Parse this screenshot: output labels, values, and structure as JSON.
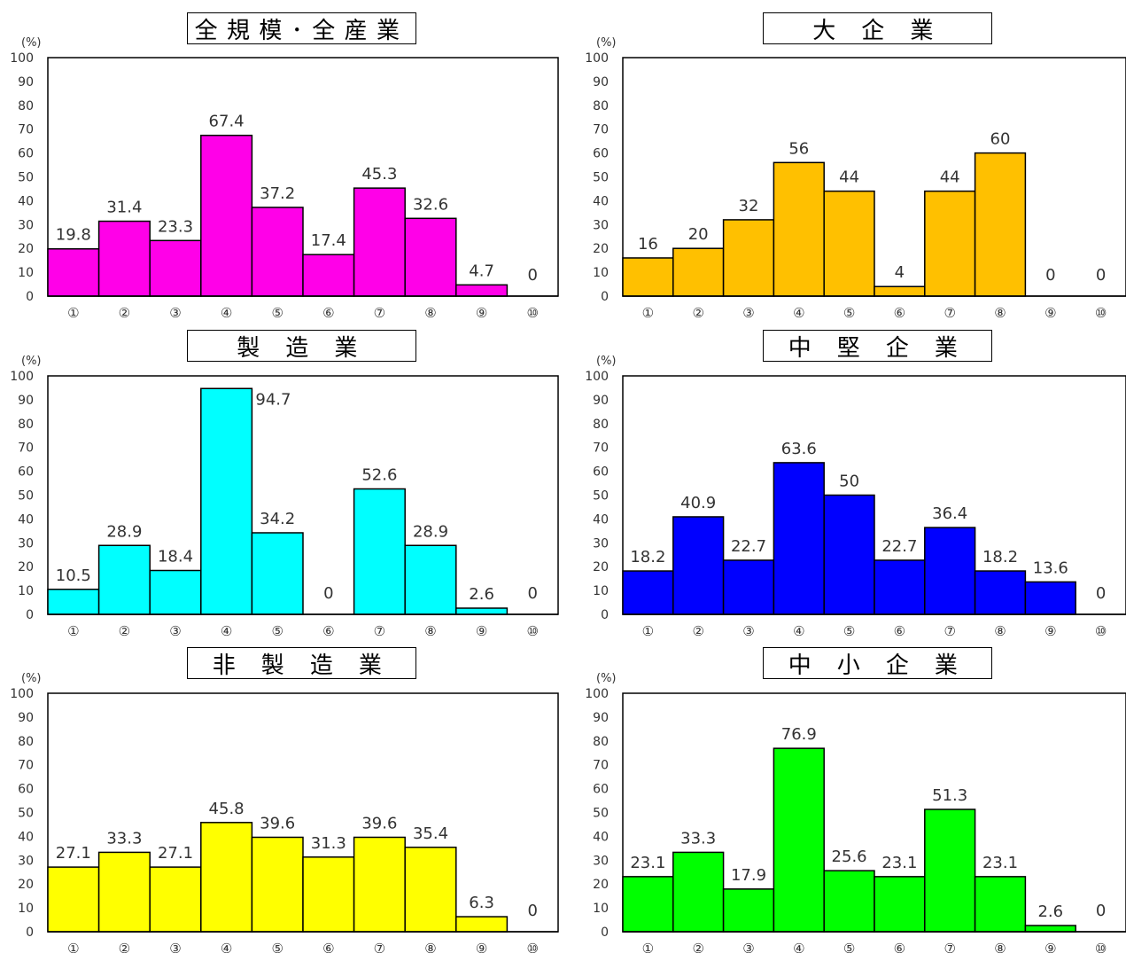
{
  "unit_label": "(%)",
  "chart_data": [
    {
      "type": "bar",
      "title": "全規模･全産業",
      "color": "#ff00e8",
      "ylim": [
        0,
        100
      ],
      "yticks": [
        0,
        10,
        20,
        30,
        40,
        50,
        60,
        70,
        80,
        90,
        100
      ],
      "ylabel": "(%)",
      "categories": [
        "①",
        "②",
        "③",
        "④",
        "⑤",
        "⑥",
        "⑦",
        "⑧",
        "⑨",
        "⑩"
      ],
      "values": [
        19.8,
        31.4,
        23.3,
        67.4,
        37.2,
        17.4,
        45.3,
        32.6,
        4.7,
        0
      ],
      "labels": [
        "19.8",
        "31.4",
        "23.3",
        "67.4",
        "37.2",
        "17.4",
        "45.3",
        "32.6",
        "4.7",
        "0"
      ]
    },
    {
      "type": "bar",
      "title": "大 企 業",
      "color": "#ffc000",
      "ylim": [
        0,
        100
      ],
      "yticks": [
        0,
        10,
        20,
        30,
        40,
        50,
        60,
        70,
        80,
        90,
        100
      ],
      "ylabel": "(%)",
      "categories": [
        "①",
        "②",
        "③",
        "④",
        "⑤",
        "⑥",
        "⑦",
        "⑧",
        "⑨",
        "⑩"
      ],
      "values": [
        16,
        20,
        32,
        56,
        44,
        4,
        44,
        60,
        0,
        0
      ],
      "labels": [
        "16",
        "20",
        "32",
        "56",
        "44",
        "4",
        "44",
        "60",
        "0",
        "0"
      ]
    },
    {
      "type": "bar",
      "title": "製 造 業",
      "color": "#00ffff",
      "ylim": [
        0,
        100
      ],
      "yticks": [
        0,
        10,
        20,
        30,
        40,
        50,
        60,
        70,
        80,
        90,
        100
      ],
      "ylabel": "(%)",
      "categories": [
        "①",
        "②",
        "③",
        "④",
        "⑤",
        "⑥",
        "⑦",
        "⑧",
        "⑨",
        "⑩"
      ],
      "values": [
        10.5,
        28.9,
        18.4,
        94.7,
        34.2,
        0,
        52.6,
        28.9,
        2.6,
        0
      ],
      "labels": [
        "10.5",
        "28.9",
        "18.4",
        "94.7",
        "34.2",
        "0",
        "52.6",
        "28.9",
        "2.6",
        "0"
      ]
    },
    {
      "type": "bar",
      "title": "中 堅 企 業",
      "color": "#0000ff",
      "ylim": [
        0,
        100
      ],
      "yticks": [
        0,
        10,
        20,
        30,
        40,
        50,
        60,
        70,
        80,
        90,
        100
      ],
      "ylabel": "(%)",
      "categories": [
        "①",
        "②",
        "③",
        "④",
        "⑤",
        "⑥",
        "⑦",
        "⑧",
        "⑨",
        "⑩"
      ],
      "values": [
        18.2,
        40.9,
        22.7,
        63.6,
        50,
        22.7,
        36.4,
        18.2,
        13.6,
        0
      ],
      "labels": [
        "18.2",
        "40.9",
        "22.7",
        "63.6",
        "50",
        "22.7",
        "36.4",
        "18.2",
        "13.6",
        "0"
      ]
    },
    {
      "type": "bar",
      "title": "非 製 造 業",
      "color": "#ffff00",
      "ylim": [
        0,
        100
      ],
      "yticks": [
        0,
        10,
        20,
        30,
        40,
        50,
        60,
        70,
        80,
        90,
        100
      ],
      "ylabel": "(%)",
      "categories": [
        "①",
        "②",
        "③",
        "④",
        "⑤",
        "⑥",
        "⑦",
        "⑧",
        "⑨",
        "⑩"
      ],
      "values": [
        27.1,
        33.3,
        27.1,
        45.8,
        39.6,
        31.3,
        39.6,
        35.4,
        6.3,
        0
      ],
      "labels": [
        "27.1",
        "33.3",
        "27.1",
        "45.8",
        "39.6",
        "31.3",
        "39.6",
        "35.4",
        "6.3",
        "0"
      ]
    },
    {
      "type": "bar",
      "title": "中 小 企 業",
      "color": "#00ff00",
      "ylim": [
        0,
        100
      ],
      "yticks": [
        0,
        10,
        20,
        30,
        40,
        50,
        60,
        70,
        80,
        90,
        100
      ],
      "ylabel": "(%)",
      "categories": [
        "①",
        "②",
        "③",
        "④",
        "⑤",
        "⑥",
        "⑦",
        "⑧",
        "⑨",
        "⑩"
      ],
      "values": [
        23.1,
        33.3,
        17.9,
        76.9,
        25.6,
        23.1,
        51.3,
        23.1,
        2.6,
        0
      ],
      "labels": [
        "23.1",
        "33.3",
        "17.9",
        "76.9",
        "25.6",
        "23.1",
        "51.3",
        "23.1",
        "2.6",
        "0"
      ]
    }
  ]
}
